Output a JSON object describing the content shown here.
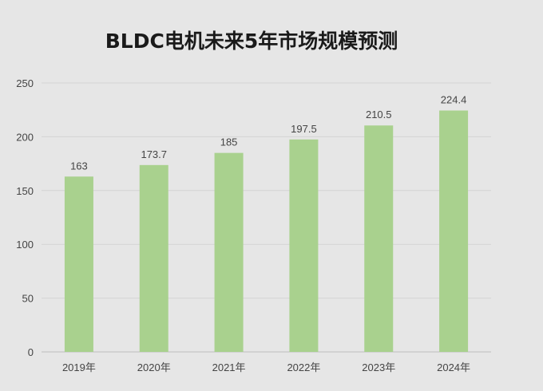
{
  "chart_data": {
    "type": "bar",
    "title": "BLDC电机未来5年市场规模预测",
    "categories": [
      "2019年",
      "2020年",
      "2021年",
      "2022年",
      "2023年",
      "2024年"
    ],
    "values": [
      163,
      173.7,
      185,
      197.5,
      210.5,
      224.4
    ],
    "data_labels": [
      "163",
      "173.7",
      "185",
      "197.5",
      "210.5",
      "224.4"
    ],
    "y_ticks": [
      0,
      50,
      100,
      150,
      200,
      250
    ],
    "ylim": [
      0,
      250
    ],
    "xlabel": "",
    "ylabel": "",
    "grid": true,
    "legend": false,
    "colors": {
      "bar": "#a9d18e",
      "grid": "#d4d4d4",
      "background": "#e6e6e6"
    }
  }
}
